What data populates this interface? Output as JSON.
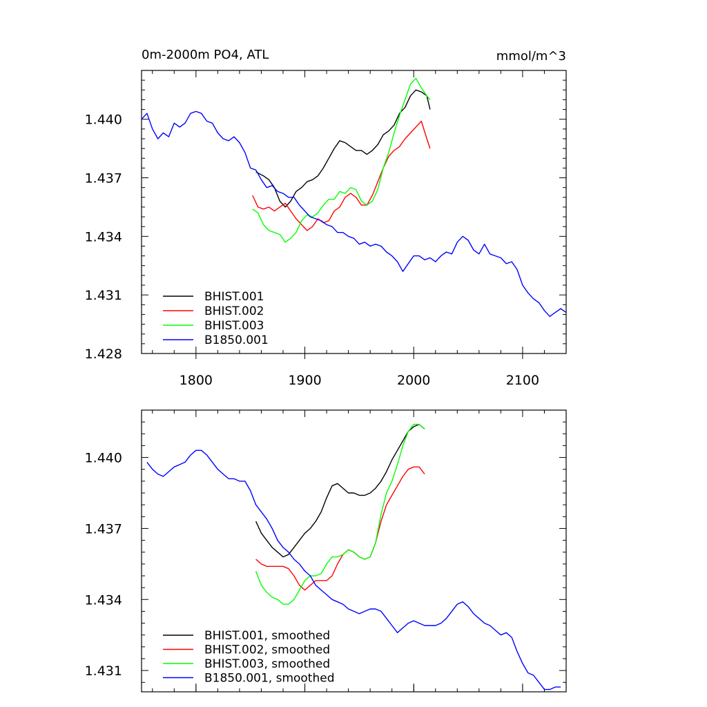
{
  "figure": {
    "title_left": "0m-2000m PO4, ATL",
    "title_right": "mmol/m^3"
  },
  "chart_data": [
    {
      "type": "line",
      "xlim": [
        1750,
        2140
      ],
      "ylim": [
        1.428,
        1.4425
      ],
      "x_ticks": [
        1800,
        1900,
        2000,
        2100
      ],
      "x_tick_labels": [
        "1800",
        "1900",
        "2000",
        "2100"
      ],
      "y_ticks": [
        1.428,
        1.431,
        1.434,
        1.437,
        1.44
      ],
      "y_tick_labels": [
        "1.428",
        "1.431",
        "1.434",
        "1.437",
        "1.440"
      ],
      "grid": false,
      "legend_position": "bottom-left",
      "series": [
        {
          "name": "BHIST.001",
          "color": "#000000",
          "x": [
            1855,
            1862,
            1867,
            1872,
            1877,
            1882,
            1887,
            1892,
            1897,
            1902,
            1907,
            1912,
            1917,
            1922,
            1927,
            1932,
            1937,
            1942,
            1947,
            1952,
            1957,
            1962,
            1967,
            1972,
            1977,
            1982,
            1987,
            1992,
            1997,
            2002,
            2007,
            2012,
            2015
          ],
          "y": [
            1.4373,
            1.4371,
            1.4369,
            1.4365,
            1.4358,
            1.4355,
            1.4358,
            1.4363,
            1.4365,
            1.4368,
            1.4369,
            1.4371,
            1.4375,
            1.438,
            1.4385,
            1.4389,
            1.4388,
            1.4386,
            1.4384,
            1.4384,
            1.4382,
            1.4384,
            1.4387,
            1.4392,
            1.4394,
            1.4397,
            1.4403,
            1.4406,
            1.4412,
            1.4415,
            1.4414,
            1.4412,
            1.4405
          ]
        },
        {
          "name": "BHIST.002",
          "color": "#ff0000",
          "x": [
            1852,
            1857,
            1862,
            1867,
            1872,
            1877,
            1882,
            1887,
            1892,
            1897,
            1902,
            1907,
            1912,
            1917,
            1922,
            1927,
            1932,
            1937,
            1942,
            1947,
            1952,
            1957,
            1962,
            1967,
            1972,
            1977,
            1982,
            1987,
            1992,
            1997,
            2002,
            2007,
            2012,
            2015
          ],
          "y": [
            1.4361,
            1.4355,
            1.4354,
            1.4355,
            1.4353,
            1.4355,
            1.4357,
            1.4353,
            1.4349,
            1.4346,
            1.4343,
            1.4345,
            1.4349,
            1.4347,
            1.4348,
            1.4353,
            1.4355,
            1.436,
            1.4362,
            1.436,
            1.4356,
            1.4356,
            1.4361,
            1.4368,
            1.4375,
            1.4381,
            1.4384,
            1.4386,
            1.439,
            1.4393,
            1.4396,
            1.4399,
            1.439,
            1.4385
          ]
        },
        {
          "name": "BHIST.003",
          "color": "#00ff00",
          "x": [
            1852,
            1857,
            1862,
            1867,
            1872,
            1877,
            1882,
            1887,
            1892,
            1897,
            1902,
            1907,
            1912,
            1917,
            1922,
            1927,
            1932,
            1937,
            1942,
            1947,
            1952,
            1957,
            1962,
            1967,
            1972,
            1977,
            1982,
            1987,
            1992,
            1997,
            2002,
            2007,
            2012,
            2015
          ],
          "y": [
            1.4354,
            1.4352,
            1.4346,
            1.4343,
            1.4342,
            1.4341,
            1.4337,
            1.4339,
            1.4342,
            1.4348,
            1.4351,
            1.435,
            1.4352,
            1.4356,
            1.4359,
            1.4359,
            1.4363,
            1.4362,
            1.4365,
            1.4364,
            1.4358,
            1.4356,
            1.4358,
            1.4364,
            1.4375,
            1.4383,
            1.4393,
            1.4402,
            1.441,
            1.4418,
            1.4421,
            1.4416,
            1.4412,
            1.441
          ]
        },
        {
          "name": "B1850.001",
          "color": "#0000ff",
          "x": [
            1750,
            1755,
            1760,
            1765,
            1770,
            1775,
            1780,
            1785,
            1790,
            1795,
            1800,
            1805,
            1810,
            1815,
            1820,
            1825,
            1830,
            1835,
            1840,
            1845,
            1850,
            1855,
            1860,
            1865,
            1870,
            1875,
            1880,
            1885,
            1890,
            1895,
            1900,
            1905,
            1910,
            1915,
            1920,
            1925,
            1930,
            1935,
            1940,
            1945,
            1950,
            1955,
            1960,
            1965,
            1970,
            1975,
            1980,
            1985,
            1990,
            1995,
            2000,
            2005,
            2010,
            2015,
            2020,
            2025,
            2030,
            2035,
            2040,
            2045,
            2050,
            2055,
            2060,
            2065,
            2070,
            2075,
            2080,
            2085,
            2090,
            2095,
            2100,
            2105,
            2110,
            2115,
            2120,
            2125,
            2130,
            2135,
            2140
          ],
          "y": [
            1.44,
            1.4403,
            1.4395,
            1.439,
            1.4393,
            1.4391,
            1.4398,
            1.4396,
            1.4398,
            1.4403,
            1.4404,
            1.4403,
            1.4399,
            1.4398,
            1.4393,
            1.439,
            1.4389,
            1.4391,
            1.4388,
            1.4383,
            1.4375,
            1.4374,
            1.4369,
            1.4365,
            1.4366,
            1.4363,
            1.4362,
            1.436,
            1.436,
            1.4356,
            1.4353,
            1.435,
            1.4349,
            1.4348,
            1.4346,
            1.4345,
            1.4342,
            1.4342,
            1.434,
            1.4339,
            1.4336,
            1.4337,
            1.4335,
            1.4336,
            1.4335,
            1.4332,
            1.433,
            1.4327,
            1.4322,
            1.4326,
            1.433,
            1.433,
            1.4328,
            1.4329,
            1.4327,
            1.433,
            1.4332,
            1.4331,
            1.4337,
            1.434,
            1.4338,
            1.4333,
            1.4331,
            1.4336,
            1.4331,
            1.433,
            1.4329,
            1.4326,
            1.4327,
            1.4323,
            1.4315,
            1.4311,
            1.4308,
            1.4306,
            1.4302,
            1.4299,
            1.4301,
            1.4303,
            1.4301
          ]
        }
      ]
    },
    {
      "type": "line",
      "xlim": [
        1750,
        2140
      ],
      "ylim": [
        1.4301,
        1.442
      ],
      "x_ticks": [
        1800,
        1900,
        2000,
        2100
      ],
      "x_tick_labels": [],
      "y_ticks": [
        1.431,
        1.434,
        1.437,
        1.44
      ],
      "y_tick_labels": [
        "1.431",
        "1.434",
        "1.437",
        "1.440"
      ],
      "grid": false,
      "legend_position": "bottom-left",
      "series": [
        {
          "name": "BHIST.001, smoothed",
          "color": "#000000",
          "x": [
            1855,
            1860,
            1865,
            1870,
            1875,
            1880,
            1885,
            1890,
            1895,
            1900,
            1905,
            1910,
            1915,
            1920,
            1925,
            1930,
            1935,
            1940,
            1945,
            1950,
            1955,
            1960,
            1965,
            1970,
            1975,
            1980,
            1985,
            1990,
            1995,
            2000,
            2005,
            2010
          ],
          "y": [
            1.4373,
            1.4368,
            1.4365,
            1.4362,
            1.436,
            1.4358,
            1.4359,
            1.4362,
            1.4365,
            1.4368,
            1.437,
            1.4373,
            1.4377,
            1.4383,
            1.4388,
            1.4389,
            1.4387,
            1.4385,
            1.4385,
            1.4384,
            1.4384,
            1.4385,
            1.4387,
            1.439,
            1.4394,
            1.4399,
            1.4403,
            1.4407,
            1.4411,
            1.4413,
            1.4414,
            1.4412
          ]
        },
        {
          "name": "BHIST.002, smoothed",
          "color": "#ff0000",
          "x": [
            1855,
            1860,
            1865,
            1870,
            1875,
            1880,
            1885,
            1890,
            1895,
            1900,
            1905,
            1910,
            1915,
            1920,
            1925,
            1930,
            1935,
            1940,
            1945,
            1950,
            1955,
            1960,
            1965,
            1970,
            1975,
            1980,
            1985,
            1990,
            1995,
            2000,
            2005,
            2010
          ],
          "y": [
            1.4357,
            1.4355,
            1.4354,
            1.4354,
            1.4354,
            1.4354,
            1.4353,
            1.435,
            1.4346,
            1.4344,
            1.4346,
            1.4348,
            1.4348,
            1.4348,
            1.435,
            1.4355,
            1.4359,
            1.4361,
            1.436,
            1.4358,
            1.4357,
            1.4358,
            1.4364,
            1.4373,
            1.438,
            1.4384,
            1.4388,
            1.4392,
            1.4395,
            1.4396,
            1.4396,
            1.4393
          ]
        },
        {
          "name": "BHIST.003, smoothed",
          "color": "#00ff00",
          "x": [
            1855,
            1860,
            1865,
            1870,
            1875,
            1880,
            1885,
            1890,
            1895,
            1900,
            1905,
            1910,
            1915,
            1920,
            1925,
            1930,
            1935,
            1940,
            1945,
            1950,
            1955,
            1960,
            1965,
            1970,
            1975,
            1980,
            1985,
            1990,
            1995,
            2000,
            2005,
            2010
          ],
          "y": [
            1.4352,
            1.4346,
            1.4343,
            1.4341,
            1.434,
            1.4338,
            1.4338,
            1.434,
            1.4344,
            1.4348,
            1.435,
            1.435,
            1.4351,
            1.4355,
            1.4358,
            1.4358,
            1.4359,
            1.4361,
            1.436,
            1.4358,
            1.4357,
            1.4358,
            1.4364,
            1.4376,
            1.4385,
            1.439,
            1.4397,
            1.4405,
            1.4411,
            1.4414,
            1.4414,
            1.4412
          ]
        },
        {
          "name": "B1850.001, smoothed",
          "color": "#0000ff",
          "x": [
            1755,
            1760,
            1765,
            1770,
            1775,
            1780,
            1785,
            1790,
            1795,
            1800,
            1805,
            1810,
            1815,
            1820,
            1825,
            1830,
            1835,
            1840,
            1845,
            1850,
            1855,
            1860,
            1865,
            1870,
            1875,
            1880,
            1885,
            1890,
            1895,
            1900,
            1905,
            1910,
            1915,
            1920,
            1925,
            1930,
            1935,
            1940,
            1945,
            1950,
            1955,
            1960,
            1965,
            1970,
            1975,
            1980,
            1985,
            1990,
            1995,
            2000,
            2005,
            2010,
            2015,
            2020,
            2025,
            2030,
            2035,
            2040,
            2045,
            2050,
            2055,
            2060,
            2065,
            2070,
            2075,
            2080,
            2085,
            2090,
            2095,
            2100,
            2105,
            2110,
            2115,
            2120,
            2125,
            2130,
            2135
          ],
          "y": [
            1.4398,
            1.4395,
            1.4393,
            1.4392,
            1.4394,
            1.4396,
            1.4397,
            1.4398,
            1.4401,
            1.4403,
            1.4403,
            1.4401,
            1.4398,
            1.4395,
            1.4393,
            1.4391,
            1.4391,
            1.439,
            1.439,
            1.4386,
            1.438,
            1.4377,
            1.4374,
            1.437,
            1.4365,
            1.4362,
            1.436,
            1.4357,
            1.4355,
            1.4352,
            1.435,
            1.4346,
            1.4344,
            1.4342,
            1.434,
            1.4339,
            1.4338,
            1.4336,
            1.4335,
            1.4334,
            1.4335,
            1.4336,
            1.4336,
            1.4335,
            1.4332,
            1.4329,
            1.4326,
            1.4328,
            1.433,
            1.4331,
            1.433,
            1.4329,
            1.4329,
            1.4329,
            1.433,
            1.4332,
            1.4335,
            1.4338,
            1.4339,
            1.4337,
            1.4334,
            1.4332,
            1.433,
            1.4329,
            1.4327,
            1.4325,
            1.4326,
            1.4324,
            1.4318,
            1.4313,
            1.4309,
            1.4308,
            1.4305,
            1.4302,
            1.4302,
            1.4303,
            1.4303
          ]
        }
      ]
    }
  ]
}
